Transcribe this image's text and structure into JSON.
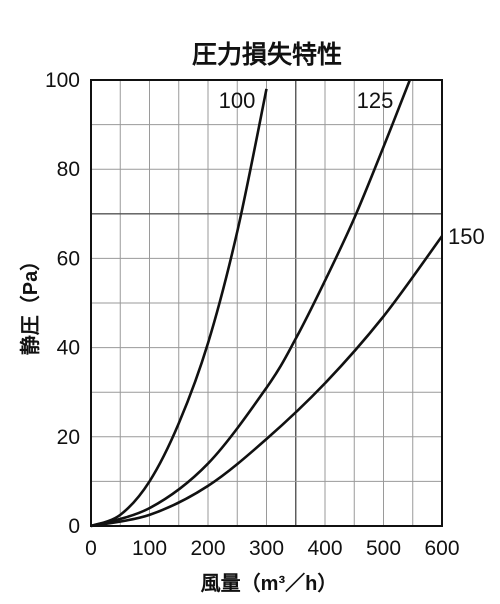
{
  "chart_data": {
    "type": "line",
    "title": "圧力損失特性",
    "xlabel": "風量（m³／h）",
    "ylabel": "静圧（Pa）",
    "xlim": [
      0,
      600
    ],
    "ylim": [
      0,
      100
    ],
    "x_ticks": [
      0,
      100,
      200,
      300,
      400,
      500,
      600
    ],
    "y_ticks": [
      0,
      20,
      40,
      60,
      80,
      100
    ],
    "x_grid_step": 50,
    "y_grid_step": 10,
    "grid": true,
    "legend": "inline labels at curve ends",
    "series": [
      {
        "name": "100",
        "x": [
          0,
          50,
          100,
          150,
          200,
          250,
          300
        ],
        "y": [
          0,
          2.5,
          10,
          23,
          41,
          66,
          98
        ]
      },
      {
        "name": "125",
        "x": [
          0,
          100,
          200,
          300,
          350,
          400,
          450,
          500,
          545
        ],
        "y": [
          0,
          4,
          14,
          31,
          42,
          55,
          69,
          85,
          100
        ]
      },
      {
        "name": "150",
        "x": [
          0,
          100,
          200,
          300,
          400,
          500,
          600
        ],
        "y": [
          0,
          2.5,
          9,
          19.5,
          32,
          47,
          65
        ]
      }
    ]
  }
}
